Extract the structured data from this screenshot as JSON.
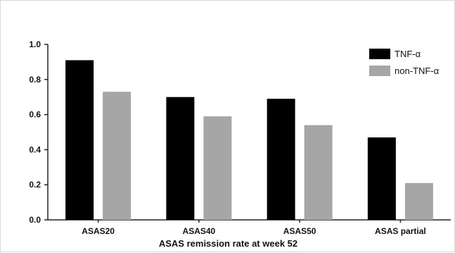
{
  "chart_data": {
    "type": "bar",
    "title": "",
    "xlabel": "ASAS remission rate at week 52",
    "ylabel": "",
    "categories": [
      "ASAS20",
      "ASAS40",
      "ASAS50",
      "ASAS partial"
    ],
    "series": [
      {
        "name": "TNF-α",
        "color": "#000000",
        "values": [
          0.91,
          0.7,
          0.69,
          0.47
        ]
      },
      {
        "name": "non-TNF-α",
        "color": "#a6a6a6",
        "values": [
          0.73,
          0.59,
          0.54,
          0.21
        ]
      }
    ],
    "ylim": [
      0,
      1.0
    ],
    "yticks": [
      "0.0",
      "0.2",
      "0.4",
      "0.6",
      "0.8",
      "1.0"
    ],
    "grid": false,
    "legend_position": "top-right"
  }
}
